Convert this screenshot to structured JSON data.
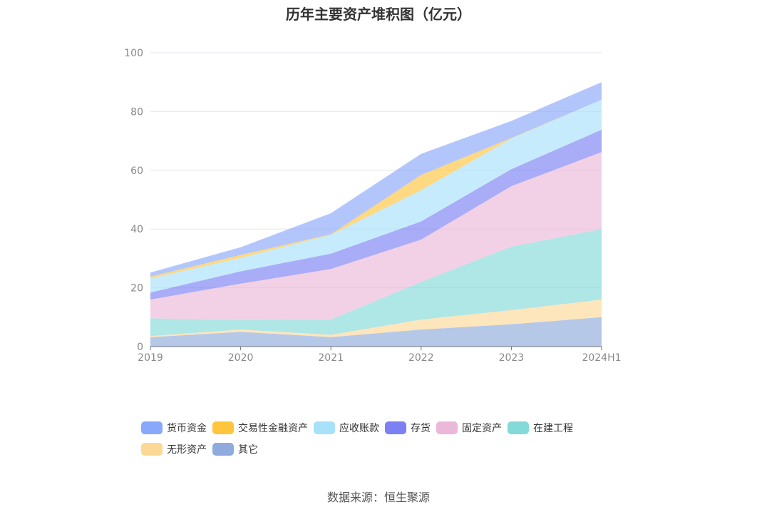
{
  "chart_data": {
    "type": "area",
    "stacked": true,
    "title": "历年主要资产堆积图（亿元）",
    "categories": [
      "2019",
      "2020",
      "2021",
      "2022",
      "2023",
      "2024H1"
    ],
    "ylim": [
      0,
      100
    ],
    "yticks": [
      "0",
      "20",
      "40",
      "60",
      "80",
      "100"
    ],
    "grid": true,
    "legend_position": "bottom",
    "series": [
      {
        "name": "其它",
        "color": "#8faadc",
        "values": [
          3.2,
          5.0,
          3.2,
          5.8,
          7.6,
          10.0
        ]
      },
      {
        "name": "无形资产",
        "color": "#fcd896",
        "values": [
          0.4,
          0.8,
          0.8,
          3.4,
          4.8,
          6.0
        ]
      },
      {
        "name": "在建工程",
        "color": "#84d9d9",
        "values": [
          6.0,
          3.2,
          5.2,
          12.8,
          21.6,
          24.0
        ]
      },
      {
        "name": "固定资产",
        "color": "#ebb8d9",
        "values": [
          6.4,
          12.4,
          17.2,
          14.4,
          20.6,
          26.2
        ]
      },
      {
        "name": "存货",
        "color": "#7b80f2",
        "values": [
          2.4,
          4.2,
          5.2,
          6.2,
          5.8,
          7.6
        ]
      },
      {
        "name": "应收账款",
        "color": "#a8e1fa",
        "values": [
          4.8,
          4.6,
          6.4,
          10.6,
          10.4,
          10.2
        ]
      },
      {
        "name": "交易性金融资产",
        "color": "#ffc53d",
        "values": [
          0.6,
          1.0,
          0.2,
          5.2,
          0.2,
          0.0
        ]
      },
      {
        "name": "货币资金",
        "color": "#8aa8fb",
        "values": [
          1.4,
          2.6,
          7.2,
          7.2,
          5.8,
          6.0
        ]
      }
    ]
  },
  "legend_order": [
    {
      "name": "货币资金",
      "color": "#8aa8fb"
    },
    {
      "name": "交易性金融资产",
      "color": "#ffc53d"
    },
    {
      "name": "应收账款",
      "color": "#a8e1fa"
    },
    {
      "name": "存货",
      "color": "#7b80f2"
    },
    {
      "name": "固定资产",
      "color": "#ebb8d9"
    },
    {
      "name": "在建工程",
      "color": "#84d9d9"
    },
    {
      "name": "无形资产",
      "color": "#fcd896"
    },
    {
      "name": "其它",
      "color": "#8faadc"
    }
  ],
  "source": "数据来源：恒生聚源"
}
